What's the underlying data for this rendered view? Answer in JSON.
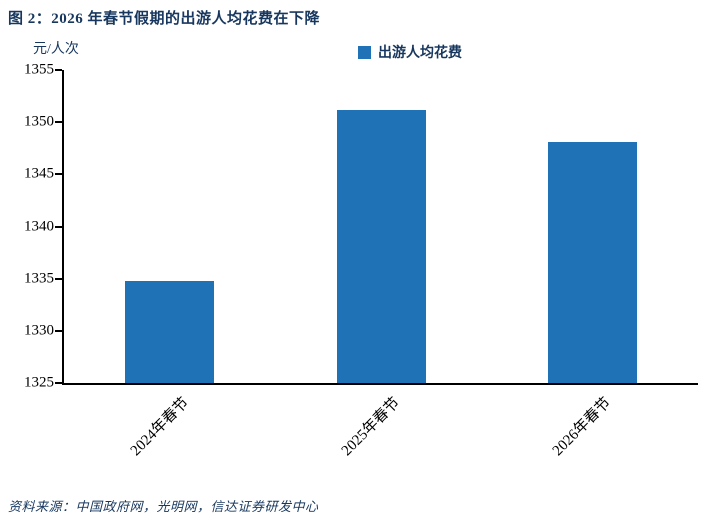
{
  "title": "图 2：2026 年春节假期的出游人均花费在下降",
  "source": "资料来源：中国政府网，光明网，信达证券研发中心",
  "colors": {
    "bar": "#1F72B5",
    "title": "#17375E",
    "axis": "#000000",
    "tick_text": "#000000"
  },
  "chart_data": {
    "type": "bar",
    "title": "",
    "ylabel": "元/人次",
    "xlabel": "",
    "legend": "出游人均花费",
    "legend_position": "top-center",
    "categories": [
      "2024年春节",
      "2025年春节",
      "2026年春节"
    ],
    "values": [
      1334.8,
      1351.2,
      1348.1
    ],
    "ylim": [
      1325,
      1355
    ],
    "ytick_step": 5,
    "yticks": [
      1325,
      1330,
      1335,
      1340,
      1345,
      1350,
      1355
    ],
    "grid": false
  }
}
